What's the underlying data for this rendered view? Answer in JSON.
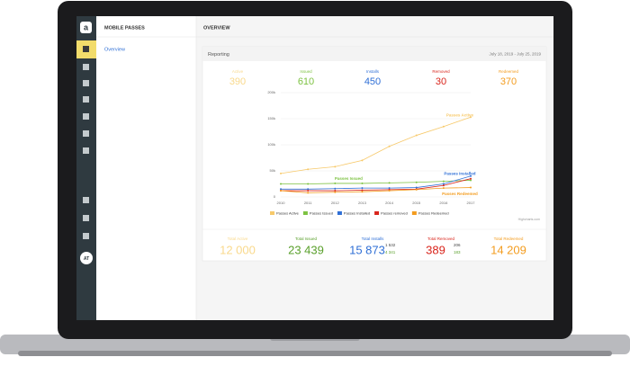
{
  "sidebar": {
    "logo": "a",
    "avatar": "AT"
  },
  "nav": {
    "title": "MOBILE PASSES",
    "items": [
      "Overview"
    ]
  },
  "main": {
    "title": "OVERVIEW"
  },
  "card": {
    "title": "Reporting",
    "date_range": "July 18, 2019 - July 25, 2019",
    "stats": [
      {
        "label": "Active",
        "value": "390",
        "color": "#f9d98c"
      },
      {
        "label": "Issued",
        "value": "610",
        "color": "#7dc242"
      },
      {
        "label": "Installs",
        "value": "450",
        "color": "#2f6fd6"
      },
      {
        "label": "Removed",
        "value": "30",
        "color": "#d9251c"
      },
      {
        "label": "Redeemed",
        "value": "370",
        "color": "#f39c1f"
      }
    ],
    "totals": [
      {
        "label": "Total Active",
        "value": "12 000",
        "color": "#f9d98c",
        "sub": []
      },
      {
        "label": "Total Issued",
        "value": "23 439",
        "color": "#5aa02c",
        "sub": []
      },
      {
        "label": "Total Installs",
        "value": "15 873",
        "color": "#2f6fd6",
        "sub": [
          "1 532",
          "4 341"
        ]
      },
      {
        "label": "Total Removed",
        "value": "389",
        "color": "#d9251c",
        "sub": [
          "206",
          "183"
        ]
      },
      {
        "label": "Total Redeemed",
        "value": "14 209",
        "color": "#f39c1f",
        "sub": []
      }
    ]
  },
  "chart_data": {
    "type": "line",
    "categories": [
      "2010",
      "2011",
      "2012",
      "2013",
      "2014",
      "2015",
      "2016",
      "2017"
    ],
    "series": [
      {
        "name": "Passes Active",
        "color": "#f7c96a",
        "values": [
          45000,
          53000,
          58000,
          70000,
          97000,
          118000,
          135000,
          153000
        ]
      },
      {
        "name": "Passes Issued",
        "color": "#7dc242",
        "values": [
          25000,
          25000,
          26000,
          26000,
          27000,
          28000,
          30000,
          32000
        ]
      },
      {
        "name": "Passes Installed",
        "color": "#2f6fd6",
        "values": [
          15000,
          15000,
          16000,
          17000,
          17000,
          18000,
          25000,
          40000
        ]
      },
      {
        "name": "Passes removed",
        "color": "#d9251c",
        "values": [
          12000,
          12000,
          12000,
          13000,
          14000,
          15000,
          22000,
          35000
        ]
      },
      {
        "name": "Passes Redeemed",
        "color": "#f39c1f",
        "values": [
          12000,
          8000,
          9000,
          10000,
          12000,
          14000,
          17000,
          18000
        ]
      }
    ],
    "annotations": [
      "Passes Active",
      "Passes Issued",
      "Passes Installed",
      "Passes Redeemed"
    ],
    "ylim": [
      0,
      200000
    ],
    "yticks": [
      0,
      {
        "value": 50000,
        "label": "50k"
      },
      {
        "value": 100000,
        "label": "100k"
      },
      {
        "value": 150000,
        "label": "150k"
      },
      {
        "value": 200000,
        "label": "200k"
      }
    ],
    "grid": true,
    "legend": "bottom",
    "credit": "Highcharts.com"
  }
}
